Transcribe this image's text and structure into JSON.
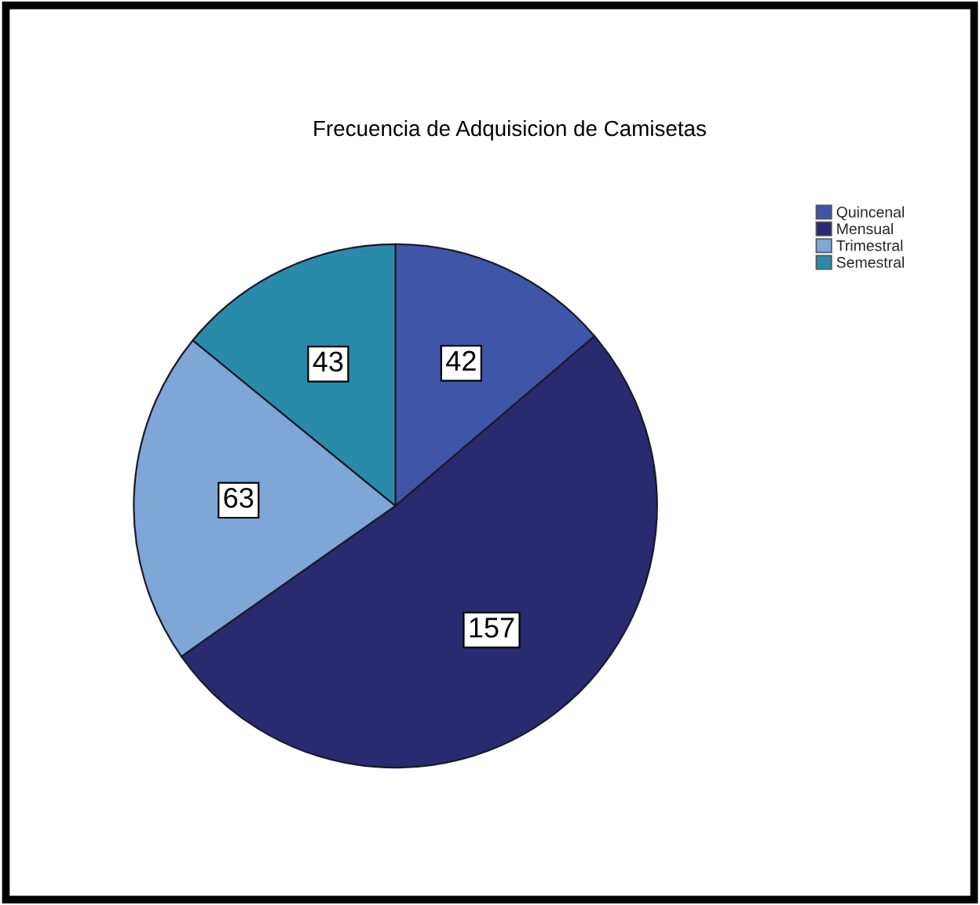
{
  "chart_data": {
    "type": "pie",
    "title": "Frecuencia de Adquisicion de Camisetas",
    "categories": [
      "Quincenal",
      "Mensual",
      "Trimestral",
      "Semestral"
    ],
    "values": [
      42,
      157,
      63,
      43
    ],
    "colors": [
      "#3f55a8",
      "#2a2a70",
      "#7ea6d6",
      "#2a8aaa"
    ],
    "data_labels": true,
    "legend": "top right"
  }
}
